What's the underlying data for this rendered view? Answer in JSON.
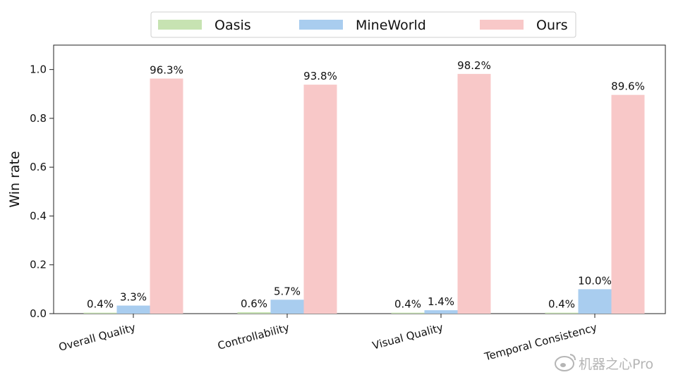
{
  "chart_data": {
    "type": "bar",
    "title": "",
    "xlabel": "",
    "ylabel": "Win rate",
    "ylim": [
      0,
      1.1
    ],
    "yticks": [
      "0.0",
      "0.2",
      "0.4",
      "0.6",
      "0.8",
      "1.0"
    ],
    "ytick_values": [
      0,
      0.2,
      0.4,
      0.6,
      0.8,
      1.0
    ],
    "categories": [
      "Overall Quality",
      "Controllability",
      "Visual Quality",
      "Temporal Consistency"
    ],
    "series": [
      {
        "name": "Oasis",
        "color": "#c7e3b2",
        "values": [
          0.004,
          0.006,
          0.004,
          0.004
        ],
        "labels": [
          "0.4%",
          "0.6%",
          "0.4%",
          "0.4%"
        ]
      },
      {
        "name": "MineWorld",
        "color": "#a9cdef",
        "values": [
          0.033,
          0.057,
          0.014,
          0.1
        ],
        "labels": [
          "3.3%",
          "5.7%",
          "1.4%",
          "10.0%"
        ]
      },
      {
        "name": "Ours",
        "color": "#f8c8c8",
        "values": [
          0.963,
          0.938,
          0.982,
          0.896
        ],
        "labels": [
          "96.3%",
          "93.8%",
          "98.2%",
          "89.6%"
        ]
      }
    ],
    "legend_position": "top-center",
    "grid": false
  },
  "watermark": {
    "text": "机器之心Pro",
    "icon": "weibo-logo-icon"
  }
}
